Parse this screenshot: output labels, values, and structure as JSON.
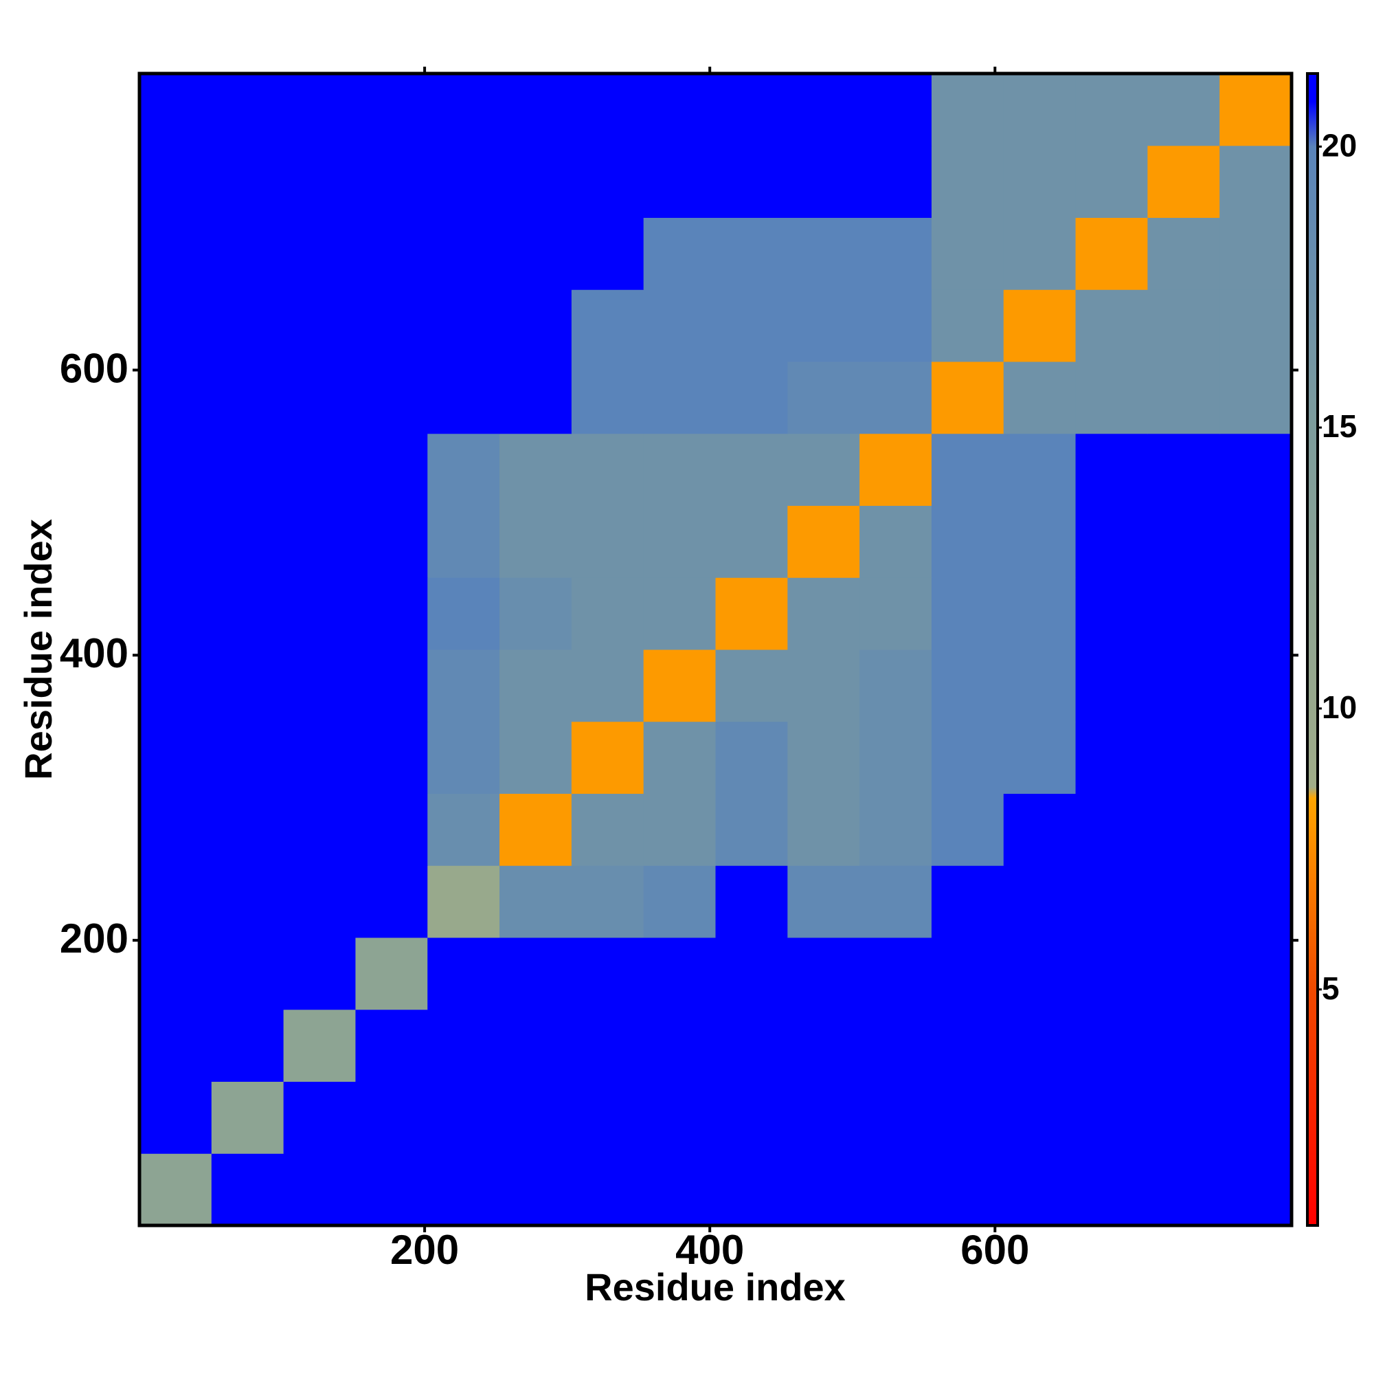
{
  "chart_data": {
    "type": "heatmap",
    "x_label": "Residue index",
    "y_label": "Residue index",
    "xlim": [
      0,
      808
    ],
    "ylim": [
      0,
      808
    ],
    "xticks": [
      200,
      400,
      600
    ],
    "yticks": [
      200,
      400,
      600
    ],
    "xbins": [
      0,
      50.5,
      101,
      151.5,
      202,
      252.5,
      303,
      353.5,
      404,
      454.5,
      505,
      555.5,
      606,
      656.5,
      707,
      757.5,
      808
    ],
    "ybins": [
      0,
      50.5,
      101,
      151.5,
      202,
      252.5,
      303,
      353.5,
      404,
      454.5,
      505,
      555.5,
      606,
      656.5,
      707,
      757.5,
      808
    ],
    "z": [
      [
        12,
        21.3,
        21.3,
        21.3,
        21.3,
        21.3,
        21.3,
        21.3,
        21.3,
        21.3,
        21.3,
        21.3,
        21.3,
        21.3,
        21.3,
        21.3
      ],
      [
        21.3,
        12,
        21.3,
        21.3,
        21.3,
        21.3,
        21.3,
        21.3,
        21.3,
        21.3,
        21.3,
        21.3,
        21.3,
        21.3,
        21.3,
        21.3
      ],
      [
        21.3,
        21.3,
        12,
        21.3,
        21.3,
        21.3,
        21.3,
        21.3,
        21.3,
        21.3,
        21.3,
        21.3,
        21.3,
        21.3,
        21.3,
        21.3
      ],
      [
        21.3,
        21.3,
        21.3,
        12,
        21.3,
        21.3,
        21.3,
        21.3,
        21.3,
        21.3,
        21.3,
        21.3,
        21.3,
        21.3,
        21.3,
        21.3
      ],
      [
        21.3,
        21.3,
        21.3,
        21.3,
        10,
        18,
        18,
        19,
        21.3,
        19,
        19,
        21.3,
        21.3,
        21.3,
        21.3,
        21.3
      ],
      [
        21.3,
        21.3,
        21.3,
        21.3,
        18,
        8,
        17,
        17,
        19,
        17,
        18,
        20,
        21.3,
        21.3,
        21.3,
        21.3
      ],
      [
        21.3,
        21.3,
        21.3,
        21.3,
        19,
        17,
        8,
        17,
        19,
        17,
        18,
        20,
        20,
        21.3,
        21.3,
        21.3
      ],
      [
        21.3,
        21.3,
        21.3,
        21.3,
        19,
        17,
        17,
        8,
        17,
        17,
        18,
        20,
        20,
        21.3,
        21.3,
        21.3
      ],
      [
        21.3,
        21.3,
        21.3,
        21.3,
        20,
        18,
        17,
        17,
        8,
        17,
        17,
        20,
        20,
        21.3,
        21.3,
        21.3
      ],
      [
        21.3,
        21.3,
        21.3,
        21.3,
        19,
        17,
        17,
        17,
        17,
        8,
        17,
        20,
        20,
        21.3,
        21.3,
        21.3
      ],
      [
        21.3,
        21.3,
        21.3,
        21.3,
        19,
        17,
        17,
        17,
        17,
        17,
        8,
        20,
        20,
        21.3,
        21.3,
        21.3
      ],
      [
        21.3,
        21.3,
        21.3,
        21.3,
        21.3,
        21.3,
        20,
        20,
        20,
        19,
        19,
        8,
        17,
        17,
        17,
        17
      ],
      [
        21.3,
        21.3,
        21.3,
        21.3,
        21.3,
        21.3,
        20,
        20,
        20,
        20,
        20,
        17,
        8,
        17,
        17,
        17
      ],
      [
        21.3,
        21.3,
        21.3,
        21.3,
        21.3,
        21.3,
        21.3,
        20,
        20,
        20,
        20,
        17,
        17,
        8,
        17,
        17
      ],
      [
        21.3,
        21.3,
        21.3,
        21.3,
        21.3,
        21.3,
        21.3,
        21.3,
        21.3,
        21.3,
        21.3,
        17,
        17,
        17,
        8,
        17
      ],
      [
        21.3,
        21.3,
        21.3,
        21.3,
        21.3,
        21.3,
        21.3,
        21.3,
        21.3,
        21.3,
        21.3,
        17,
        17,
        17,
        17,
        8
      ]
    ],
    "zlim": [
      0.8,
      21.3
    ],
    "zticks": [
      5,
      10,
      15,
      20
    ],
    "colorscale": [
      {
        "value": 0.8,
        "color": "#ff0000"
      },
      {
        "value": 5,
        "color": "#f04a00"
      },
      {
        "value": 8.4,
        "color": "#ffa500"
      },
      {
        "value": 8.6,
        "color": "#a0ac88"
      },
      {
        "value": 15,
        "color": "#7d9c9c"
      },
      {
        "value": 20,
        "color": "#5a84ba"
      },
      {
        "value": 20.8,
        "color": "#0000ff"
      },
      {
        "value": 21.3,
        "color": "#0000ff"
      }
    ]
  }
}
